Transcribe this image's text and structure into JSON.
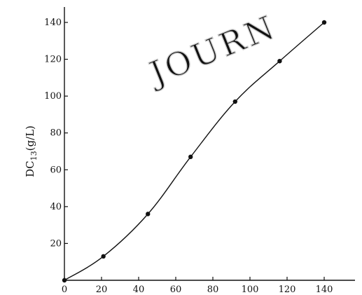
{
  "chart_data": {
    "type": "line",
    "title": "",
    "xlabel": "",
    "ylabel": "DC13(g/L)",
    "xlim": [
      0,
      150
    ],
    "ylim": [
      0,
      150
    ],
    "x_ticks": [
      0,
      20,
      40,
      60,
      80,
      100,
      120,
      140
    ],
    "y_ticks": [
      20,
      40,
      60,
      80,
      100,
      120,
      140
    ],
    "x_tick_labels": [
      "0",
      "20",
      "40",
      "60",
      "80",
      "100",
      "120",
      "140"
    ],
    "y_tick_labels": [
      "20",
      "40",
      "60",
      "80",
      "100",
      "120",
      "140"
    ],
    "grid": false,
    "series": [
      {
        "x": [
          0,
          21,
          45,
          68,
          92,
          116,
          140
        ],
        "y": [
          0,
          13,
          36,
          67,
          97,
          119,
          140
        ]
      }
    ],
    "line_color": "#111111",
    "watermark": "JOURN"
  }
}
